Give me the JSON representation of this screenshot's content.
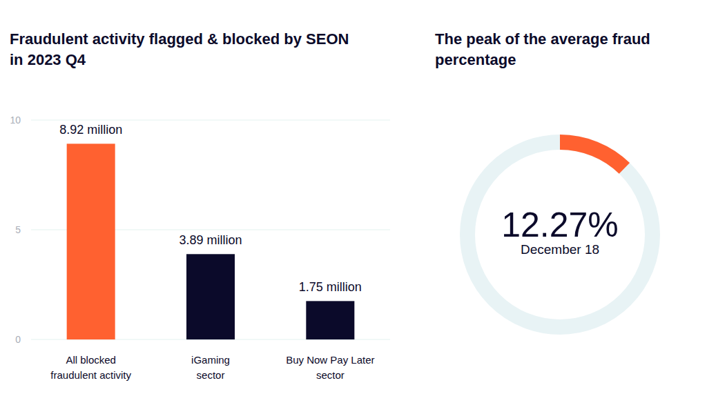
{
  "chart_data": [
    {
      "type": "bar",
      "title": "Fraudulent activity flagged & blocked by SEON in 2023 Q4",
      "categories": [
        "All blocked\nfraudulent activity",
        "iGaming\nsector",
        "Buy Now Pay Later\nsector"
      ],
      "values": [
        8.92,
        3.89,
        1.75
      ],
      "value_labels": [
        "8.92 million",
        "3.89 million",
        "1.75 million"
      ],
      "data_labels": true,
      "colors": [
        "#ff6130",
        "#0b0a2a",
        "#0b0a2a"
      ],
      "ylim": [
        0,
        10
      ],
      "yticks": [
        0,
        5,
        10
      ],
      "grid": true
    },
    {
      "type": "donut",
      "title": "The peak of the average fraud percentage",
      "values": [
        12.27
      ],
      "value_labels": [
        "12.27%"
      ],
      "data_labels": true,
      "total": 100,
      "colors": [
        "#ff6130"
      ],
      "annotation": "December 18"
    }
  ]
}
